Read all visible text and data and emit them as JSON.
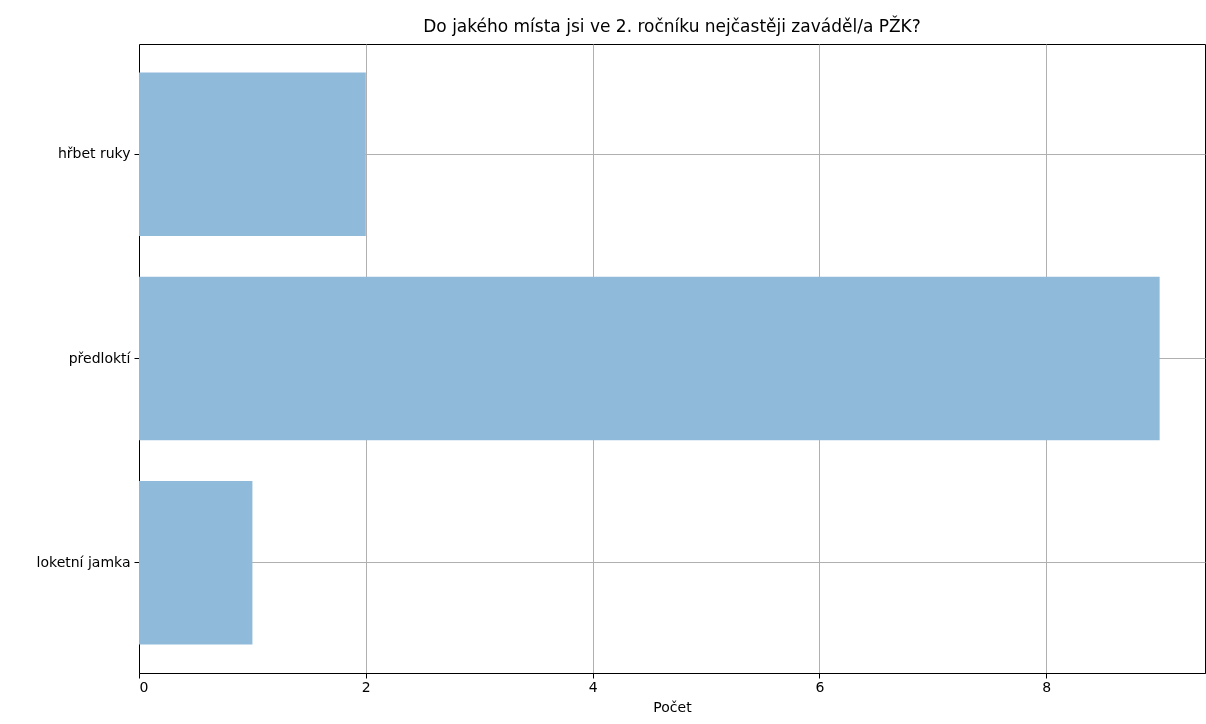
{
  "chart_data": {
    "type": "bar",
    "orientation": "horizontal",
    "title": "Do jakého místa jsi ve 2. ročníku nejčastěji zaváděl/a PŽK?",
    "xlabel": "Počet",
    "categories": [
      "hřbet ruky",
      "předloktí",
      "loketní jamka"
    ],
    "values": [
      2,
      9,
      1
    ],
    "color": "#8fbad9",
    "xlim": [
      0,
      9.4
    ],
    "xticks": [
      0,
      2,
      4,
      6,
      8
    ],
    "grid": true
  }
}
